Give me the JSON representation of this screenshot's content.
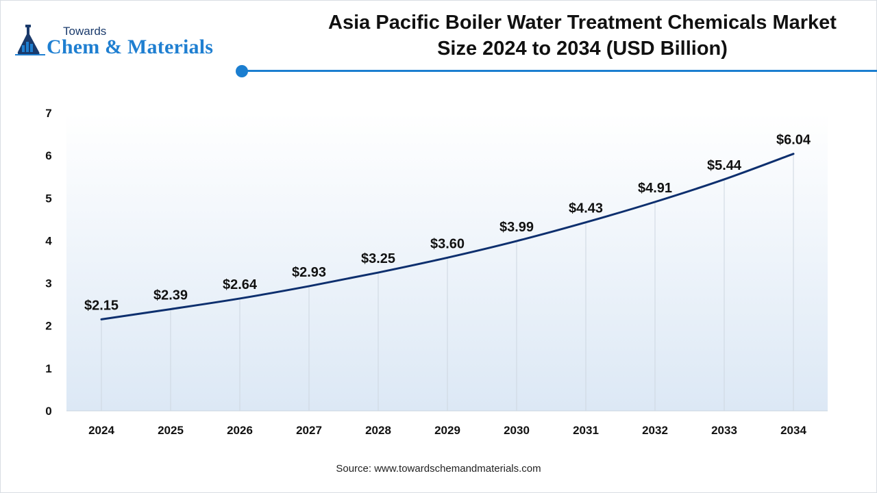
{
  "logo": {
    "top_text": "Towards",
    "bottom_text": "Chem & Materials",
    "icon": "flask-chart-icon",
    "colors": {
      "primary": "#1f7fd1",
      "dark": "#1a3a6b"
    }
  },
  "header": {
    "title_line1": "Asia Pacific Boiler Water Treatment Chemicals Market",
    "title_line2": "Size 2024 to 2034 (USD Billion)",
    "accent_color": "#1b7ed0"
  },
  "chart_data": {
    "type": "line",
    "title": "Asia Pacific Boiler Water Treatment Chemicals Market Size 2024 to 2034 (USD Billion)",
    "xlabel": "",
    "ylabel": "",
    "categories": [
      "2024",
      "2025",
      "2026",
      "2027",
      "2028",
      "2029",
      "2030",
      "2031",
      "2032",
      "2033",
      "2034"
    ],
    "series": [
      {
        "values": [
          2.15,
          2.39,
          2.64,
          2.93,
          3.25,
          3.6,
          3.99,
          4.43,
          4.91,
          5.44,
          6.04
        ],
        "labels": [
          "$2.15",
          "$2.39",
          "$2.64",
          "$2.93",
          "$3.25",
          "$3.60",
          "$3.99",
          "$4.43",
          "$4.91",
          "$5.44",
          "$6.04"
        ],
        "color": "#0d2f6e"
      }
    ],
    "ylim": [
      0,
      7
    ],
    "yticks": [
      "0",
      "1",
      "2",
      "3",
      "4",
      "5",
      "6",
      "7"
    ],
    "grid": "vertical drop lines",
    "legend": "none",
    "plot_background_gradient": [
      "#ffffff",
      "#dce8f5"
    ]
  },
  "footer": {
    "source": "Source: www.towardschemandmaterials.com"
  }
}
